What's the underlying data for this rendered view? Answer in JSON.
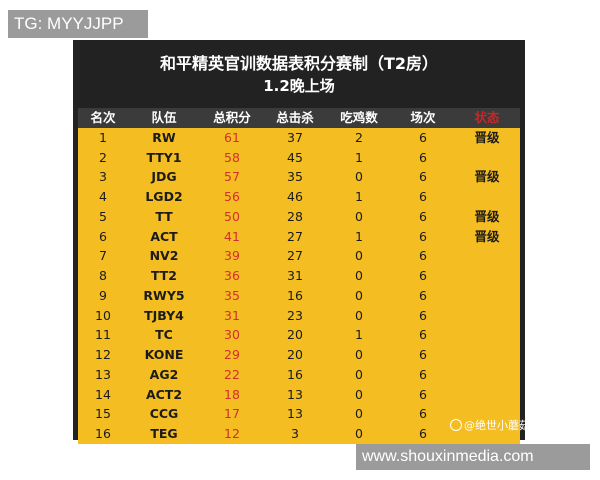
{
  "tag": "TG: MYYJJPP",
  "board": {
    "title": "和平精英官训数据表积分赛制（T2房）",
    "subtitle": "1.2晚上场"
  },
  "table": {
    "headers": [
      "名次",
      "队伍",
      "总积分",
      "总击杀",
      "吃鸡数",
      "场次",
      "状态"
    ],
    "rows": [
      [
        "1",
        "RW",
        "61",
        "37",
        "2",
        "6",
        "晋级"
      ],
      [
        "2",
        "TTY1",
        "58",
        "45",
        "1",
        "6",
        ""
      ],
      [
        "3",
        "JDG",
        "57",
        "35",
        "0",
        "6",
        "晋级"
      ],
      [
        "4",
        "LGD2",
        "56",
        "46",
        "1",
        "6",
        ""
      ],
      [
        "5",
        "TT",
        "50",
        "28",
        "0",
        "6",
        "晋级"
      ],
      [
        "6",
        "ACT",
        "41",
        "27",
        "1",
        "6",
        "晋级"
      ],
      [
        "7",
        "NV2",
        "39",
        "27",
        "0",
        "6",
        ""
      ],
      [
        "8",
        "TT2",
        "36",
        "31",
        "0",
        "6",
        ""
      ],
      [
        "9",
        "RWY5",
        "35",
        "16",
        "0",
        "6",
        ""
      ],
      [
        "10",
        "TJBY4",
        "31",
        "23",
        "0",
        "6",
        ""
      ],
      [
        "11",
        "TC",
        "30",
        "20",
        "1",
        "6",
        ""
      ],
      [
        "12",
        "KONE",
        "29",
        "20",
        "0",
        "6",
        ""
      ],
      [
        "13",
        "AG2",
        "22",
        "16",
        "0",
        "6",
        ""
      ],
      [
        "14",
        "ACT2",
        "18",
        "13",
        "0",
        "6",
        ""
      ],
      [
        "15",
        "CCG",
        "17",
        "13",
        "0",
        "6",
        ""
      ],
      [
        "16",
        "TEG",
        "12",
        "3",
        "0",
        "6",
        ""
      ]
    ]
  },
  "weibo_credit": "@绝世小蘑菇",
  "watermark": "www.shouxinmedia.com"
}
